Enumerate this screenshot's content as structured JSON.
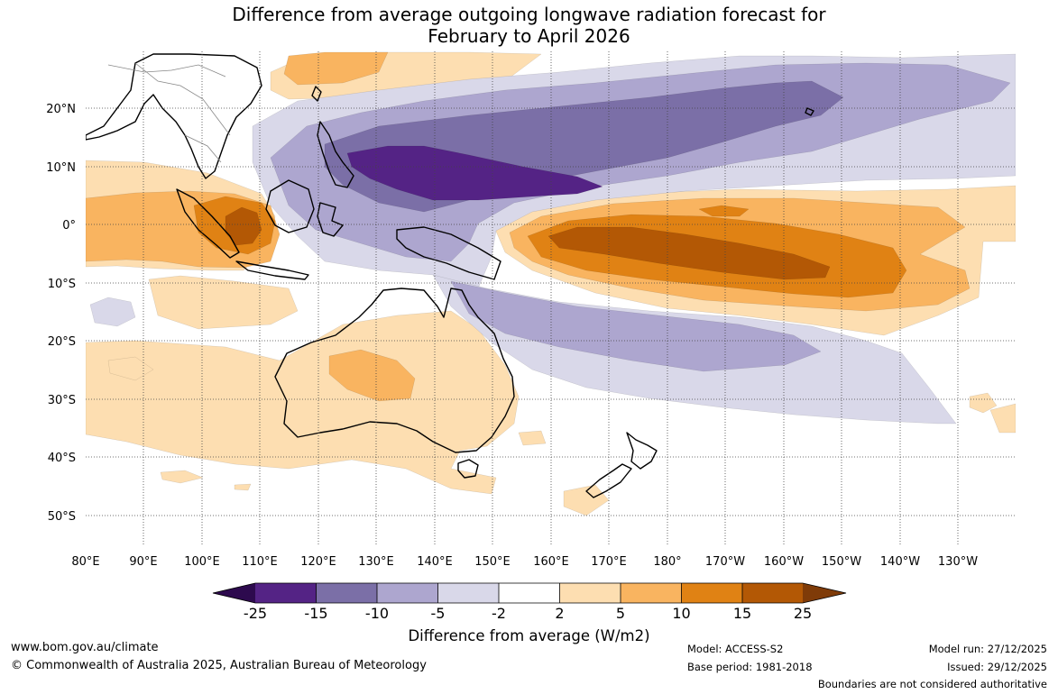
{
  "title": {
    "line1": "Difference from average outgoing longwave radiation forecast for",
    "line2": "February to April 2026"
  },
  "axes": {
    "lon_labels": [
      "80°E",
      "90°E",
      "100°E",
      "110°E",
      "120°E",
      "130°E",
      "140°E",
      "150°E",
      "160°E",
      "170°E",
      "180°",
      "170°W",
      "160°W",
      "150°W",
      "140°W",
      "130°W"
    ],
    "lat_labels": [
      "20°N",
      "10°N",
      "0°",
      "10°S",
      "20°S",
      "30°S",
      "40°S",
      "50°S"
    ]
  },
  "colorbar": {
    "tick_labels": [
      "-25",
      "-15",
      "-10",
      "-5",
      "-2",
      "2",
      "5",
      "10",
      "15",
      "25"
    ],
    "colors": {
      "lt_neg25": "#2d0a4e",
      "n25_15": "#542385",
      "n15_10": "#7b6fa7",
      "n10_5": "#ada6cf",
      "n5_2": "#d9d8e9",
      "n2_2": "#ffffff",
      "p2_5": "#fddeb1",
      "p5_10": "#f9b460",
      "p10_15": "#e08214",
      "p15_25": "#b35805",
      "gt25": "#7f3b08"
    },
    "label": "Difference from average (W/m2)"
  },
  "footer": {
    "website": "www.bom.gov.au/climate",
    "copyright": "© Commonwealth of Australia 2025, Australian Bureau of Meteorology",
    "model": "Model: ACCESS-S2",
    "base_period": "Base period: 1981-2018",
    "model_run": "Model run: 27/12/2025",
    "issued": "Issued: 29/12/2025",
    "disclaimer": "Boundaries are not considered authoritative"
  }
}
